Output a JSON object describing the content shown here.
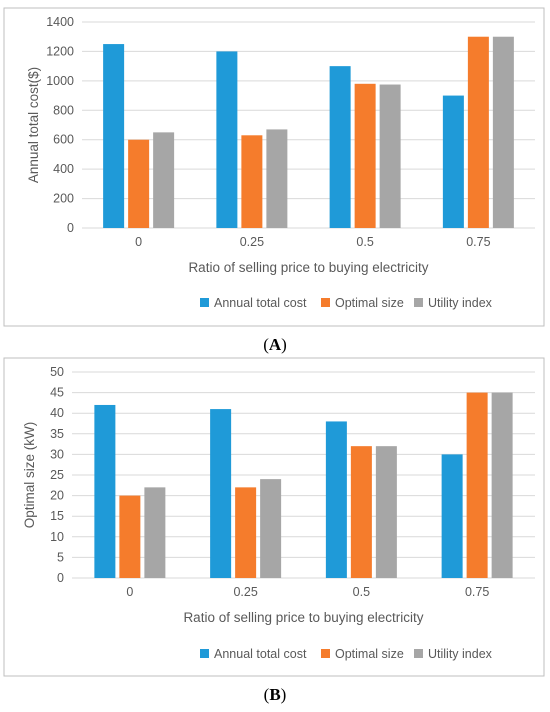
{
  "colors": {
    "annual_total_cost": "#1f9ad8",
    "optimal_size": "#f57c2c",
    "utility_index": "#a6a6a6",
    "gridline": "#d9d9d9",
    "frame": "#bfbfbf",
    "text": "#595959"
  },
  "chart_data": [
    {
      "type": "bar",
      "caption": "(A)",
      "caption_letter": "A",
      "categories": [
        "0",
        "0.25",
        "0.5",
        "0.75"
      ],
      "series": [
        {
          "name": "Annual total cost",
          "values": [
            1250,
            1200,
            1100,
            900
          ]
        },
        {
          "name": "Optimal size",
          "values": [
            600,
            630,
            980,
            1300
          ]
        },
        {
          "name": "Utility index",
          "values": [
            650,
            670,
            975,
            1300
          ]
        }
      ],
      "xlabel": "Ratio of selling price to buying electricity",
      "ylabel": "Annual total cost($)",
      "ylim": [
        0,
        1400
      ],
      "yticks": [
        "0",
        "200",
        "400",
        "600",
        "800",
        "1000",
        "1200",
        "1400"
      ],
      "grid": true,
      "legend_position": "bottom-right"
    },
    {
      "type": "bar",
      "caption": "(B)",
      "caption_letter": "B",
      "categories": [
        "0",
        "0.25",
        "0.5",
        "0.75"
      ],
      "series": [
        {
          "name": "Annual total cost",
          "values": [
            42,
            41,
            38,
            30
          ]
        },
        {
          "name": "Optimal size",
          "values": [
            20,
            22,
            32,
            45
          ]
        },
        {
          "name": "Utility index",
          "values": [
            22,
            24,
            32,
            45
          ]
        }
      ],
      "xlabel": "Ratio of selling price to buying electricity",
      "ylabel": "Optimal size (kW)",
      "ylim": [
        0,
        50
      ],
      "yticks": [
        "0",
        "5",
        "10",
        "15",
        "20",
        "25",
        "30",
        "35",
        "40",
        "45",
        "50"
      ],
      "grid": true,
      "legend_position": "bottom-right"
    }
  ]
}
